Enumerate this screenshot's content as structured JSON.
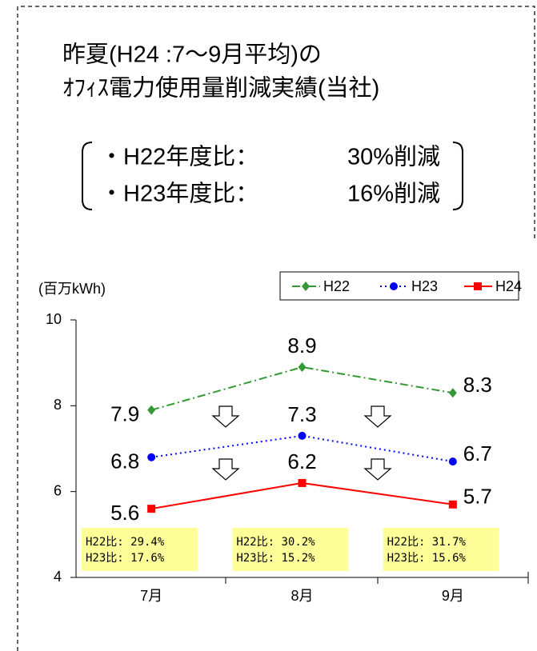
{
  "header": {
    "title": [
      "昨夏(H24 :7～9月平均)の",
      "ｵﾌｨｽ電力使用量削減実績(当社)"
    ],
    "summary": [
      {
        "label": "・H22年度比：",
        "value": "30%削減"
      },
      {
        "label": "・H23年度比：",
        "value": "16%削減"
      }
    ]
  },
  "chart_data": {
    "type": "line",
    "y_label": "(百万kWh)",
    "categories": [
      "7月",
      "8月",
      "9月"
    ],
    "series": [
      {
        "name": "H22",
        "color": "#339933",
        "marker": "diamond",
        "dash": "dashdot",
        "values": [
          7.9,
          8.9,
          8.3
        ]
      },
      {
        "name": "H23",
        "color": "#0000ff",
        "marker": "circle",
        "dash": "dot",
        "values": [
          6.8,
          7.3,
          6.7
        ]
      },
      {
        "name": "H24",
        "color": "#ff0000",
        "marker": "square",
        "dash": "solid",
        "values": [
          5.6,
          6.2,
          5.7
        ]
      }
    ],
    "ylim": [
      4,
      10
    ],
    "yticks": [
      4,
      6,
      8,
      10
    ],
    "grid": false,
    "annotations": [
      [
        "H22比:  29.4%",
        "H23比:  17.6%"
      ],
      [
        "H22比:  30.2%",
        "H23比:  15.2%"
      ],
      [
        "H22比:  31.7%",
        "H23比:  15.6%"
      ]
    ]
  }
}
